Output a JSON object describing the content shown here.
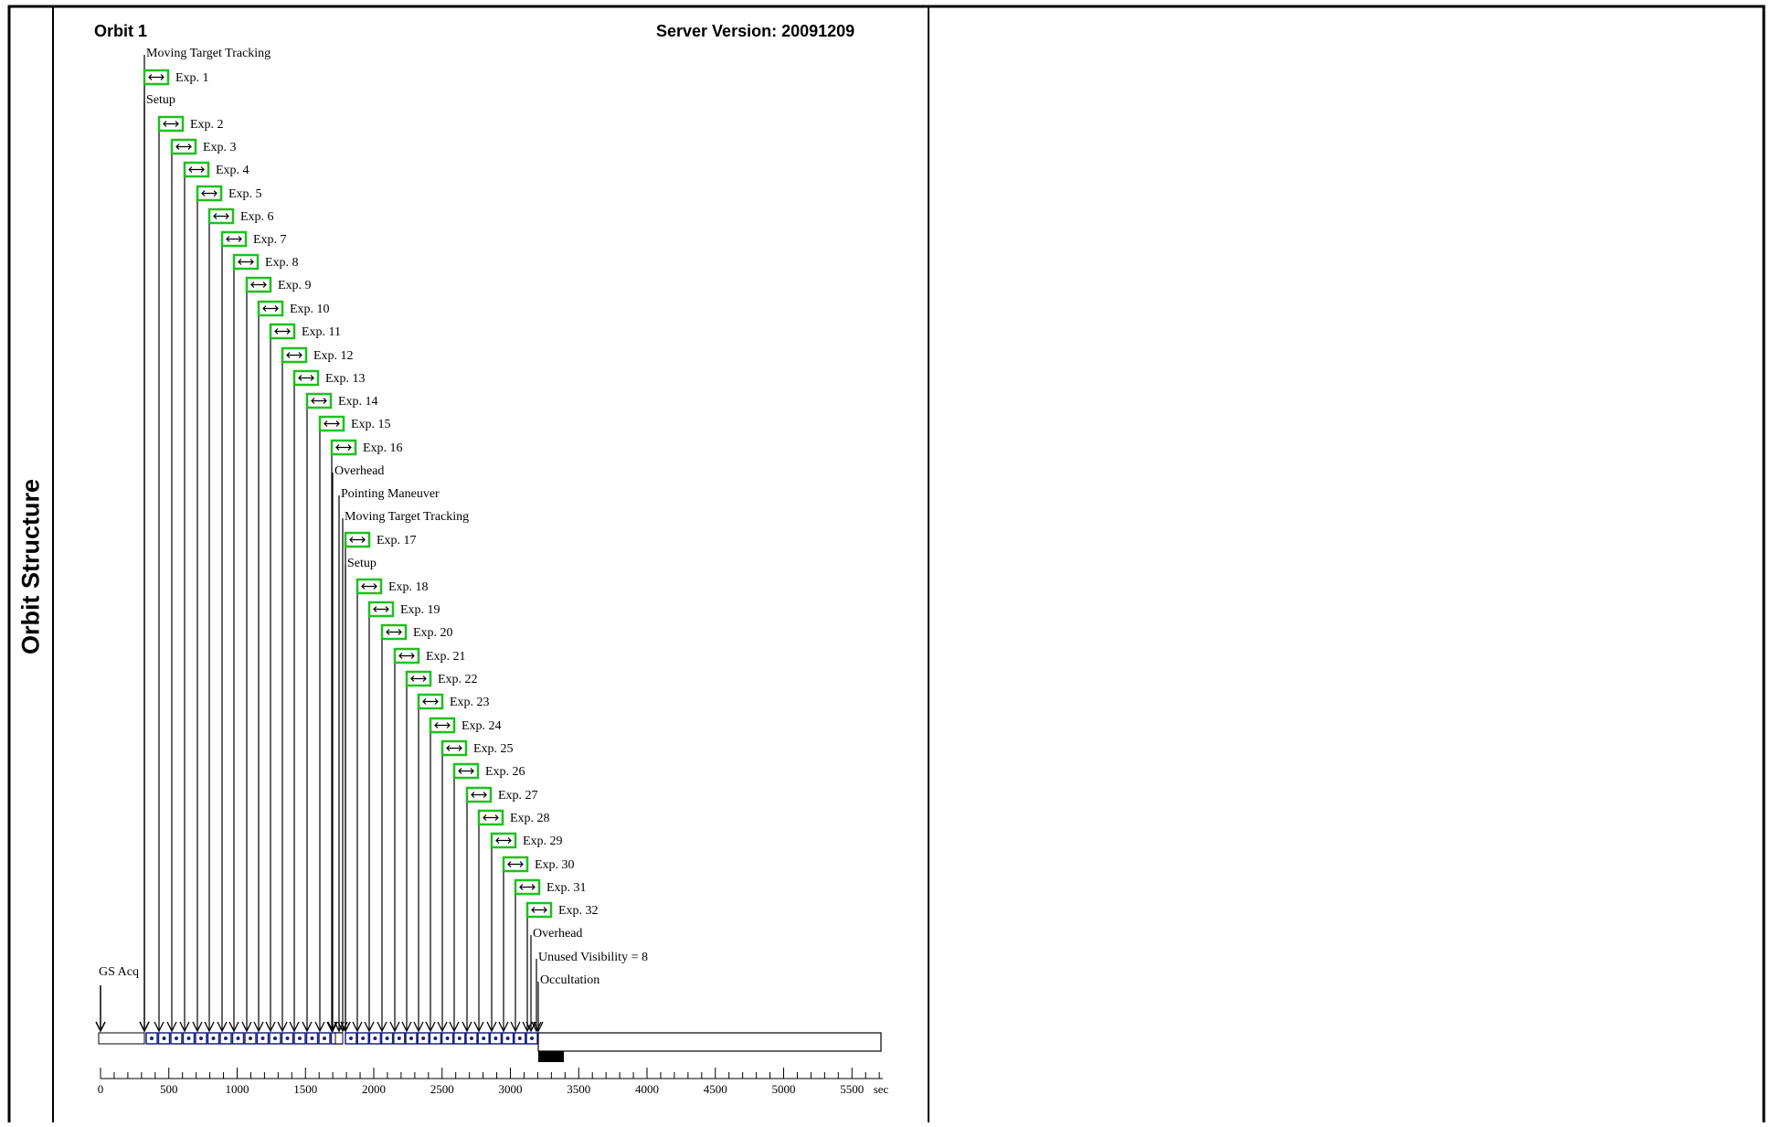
{
  "side_title": "Orbit Structure",
  "orbit_title": "Orbit 1",
  "server_version": "Server Version: 20091209",
  "events": [
    {
      "label": "GS Acq",
      "kind": "text"
    },
    {
      "label": "Moving Target Tracking",
      "kind": "text"
    },
    {
      "label": "Exp. 1",
      "kind": "exp"
    },
    {
      "label": "Setup",
      "kind": "text"
    },
    {
      "label": "Exp. 2",
      "kind": "exp"
    },
    {
      "label": "Exp. 3",
      "kind": "exp"
    },
    {
      "label": "Exp. 4",
      "kind": "exp"
    },
    {
      "label": "Exp. 5",
      "kind": "exp"
    },
    {
      "label": "Exp. 6",
      "kind": "exp"
    },
    {
      "label": "Exp. 7",
      "kind": "exp"
    },
    {
      "label": "Exp. 8",
      "kind": "exp"
    },
    {
      "label": "Exp. 9",
      "kind": "exp"
    },
    {
      "label": "Exp. 10",
      "kind": "exp"
    },
    {
      "label": "Exp. 11",
      "kind": "exp"
    },
    {
      "label": "Exp. 12",
      "kind": "exp"
    },
    {
      "label": "Exp. 13",
      "kind": "exp"
    },
    {
      "label": "Exp. 14",
      "kind": "exp"
    },
    {
      "label": "Exp. 15",
      "kind": "exp"
    },
    {
      "label": "Exp. 16",
      "kind": "exp"
    },
    {
      "label": "Overhead",
      "kind": "text"
    },
    {
      "label": "Pointing Maneuver",
      "kind": "text"
    },
    {
      "label": "Moving Target Tracking",
      "kind": "text"
    },
    {
      "label": "Exp. 17",
      "kind": "exp"
    },
    {
      "label": "Setup",
      "kind": "text"
    },
    {
      "label": "Exp. 18",
      "kind": "exp"
    },
    {
      "label": "Exp. 19",
      "kind": "exp"
    },
    {
      "label": "Exp. 20",
      "kind": "exp"
    },
    {
      "label": "Exp. 21",
      "kind": "exp"
    },
    {
      "label": "Exp. 22",
      "kind": "exp"
    },
    {
      "label": "Exp. 23",
      "kind": "exp"
    },
    {
      "label": "Exp. 24",
      "kind": "exp"
    },
    {
      "label": "Exp. 25",
      "kind": "exp"
    },
    {
      "label": "Exp. 26",
      "kind": "exp"
    },
    {
      "label": "Exp. 27",
      "kind": "exp"
    },
    {
      "label": "Exp. 28",
      "kind": "exp"
    },
    {
      "label": "Exp. 29",
      "kind": "exp"
    },
    {
      "label": "Exp. 30",
      "kind": "exp"
    },
    {
      "label": "Exp. 31",
      "kind": "exp"
    },
    {
      "label": "Exp. 32",
      "kind": "exp"
    },
    {
      "label": "Overhead",
      "kind": "text"
    },
    {
      "label": "Unused Visibility = 8",
      "kind": "text"
    },
    {
      "label": "Occultation",
      "kind": "text"
    }
  ],
  "axis": {
    "ticks": [
      "0",
      "500",
      "1000",
      "1500",
      "2000",
      "2500",
      "3000",
      "3500",
      "4000",
      "4500",
      "5000",
      "5500"
    ],
    "unit": "sec"
  },
  "colors": {
    "exp_border": "#1fbf1f",
    "segment_fill": "#1a237e",
    "occultation": "#000000"
  },
  "icons": {
    "exp": "double-arrow-icon"
  }
}
